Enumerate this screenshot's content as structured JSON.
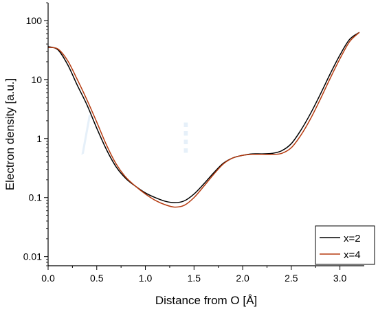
{
  "chart_data": {
    "type": "line",
    "title": "",
    "xlabel": "Distance from O [Å]",
    "ylabel": "Electron density [a.u.]",
    "xlim": [
      0.0,
      3.25
    ],
    "ylim": [
      0.007,
      200
    ],
    "yscale": "log",
    "grid": false,
    "legend_position": "bottom-right",
    "x_ticks": [
      {
        "value": 0.0,
        "label": "0.0"
      },
      {
        "value": 0.5,
        "label": "0.5"
      },
      {
        "value": 1.0,
        "label": "1.0"
      },
      {
        "value": 1.5,
        "label": "1.5"
      },
      {
        "value": 2.0,
        "label": "2.0"
      },
      {
        "value": 2.5,
        "label": "2.5"
      },
      {
        "value": 3.0,
        "label": "3.0"
      }
    ],
    "y_ticks": [
      {
        "value": 0.01,
        "label": "0.01"
      },
      {
        "value": 0.1,
        "label": "0.1"
      },
      {
        "value": 1,
        "label": "1"
      },
      {
        "value": 10,
        "label": "10"
      },
      {
        "value": 100,
        "label": "100"
      }
    ],
    "series": [
      {
        "name": "x=2",
        "color": "#000000",
        "x": [
          0.0,
          0.1,
          0.2,
          0.3,
          0.4,
          0.5,
          0.6,
          0.7,
          0.8,
          0.9,
          1.0,
          1.1,
          1.2,
          1.3,
          1.4,
          1.5,
          1.6,
          1.7,
          1.8,
          1.9,
          2.0,
          2.1,
          2.2,
          2.3,
          2.4,
          2.5,
          2.6,
          2.7,
          2.8,
          2.9,
          3.0,
          3.1,
          3.2
        ],
        "y": [
          36,
          32,
          18,
          8,
          3.7,
          1.5,
          0.65,
          0.33,
          0.21,
          0.155,
          0.12,
          0.1,
          0.087,
          0.082,
          0.088,
          0.115,
          0.17,
          0.26,
          0.38,
          0.47,
          0.52,
          0.55,
          0.55,
          0.56,
          0.62,
          0.82,
          1.4,
          2.7,
          5.7,
          12.5,
          26,
          48,
          63
        ]
      },
      {
        "name": "x=4",
        "color": "#b53a0f",
        "x": [
          0.0,
          0.1,
          0.2,
          0.3,
          0.4,
          0.5,
          0.6,
          0.7,
          0.8,
          0.9,
          1.0,
          1.1,
          1.2,
          1.3,
          1.4,
          1.5,
          1.6,
          1.7,
          1.8,
          1.9,
          2.0,
          2.1,
          2.2,
          2.3,
          2.4,
          2.5,
          2.6,
          2.7,
          2.8,
          2.9,
          3.0,
          3.1,
          3.2
        ],
        "y": [
          35,
          33,
          21,
          10,
          4.5,
          1.9,
          0.78,
          0.37,
          0.22,
          0.155,
          0.115,
          0.09,
          0.076,
          0.069,
          0.074,
          0.1,
          0.155,
          0.245,
          0.37,
          0.47,
          0.52,
          0.54,
          0.54,
          0.54,
          0.56,
          0.7,
          1.15,
          2.2,
          4.7,
          10.5,
          22.5,
          44,
          63
        ]
      }
    ]
  }
}
